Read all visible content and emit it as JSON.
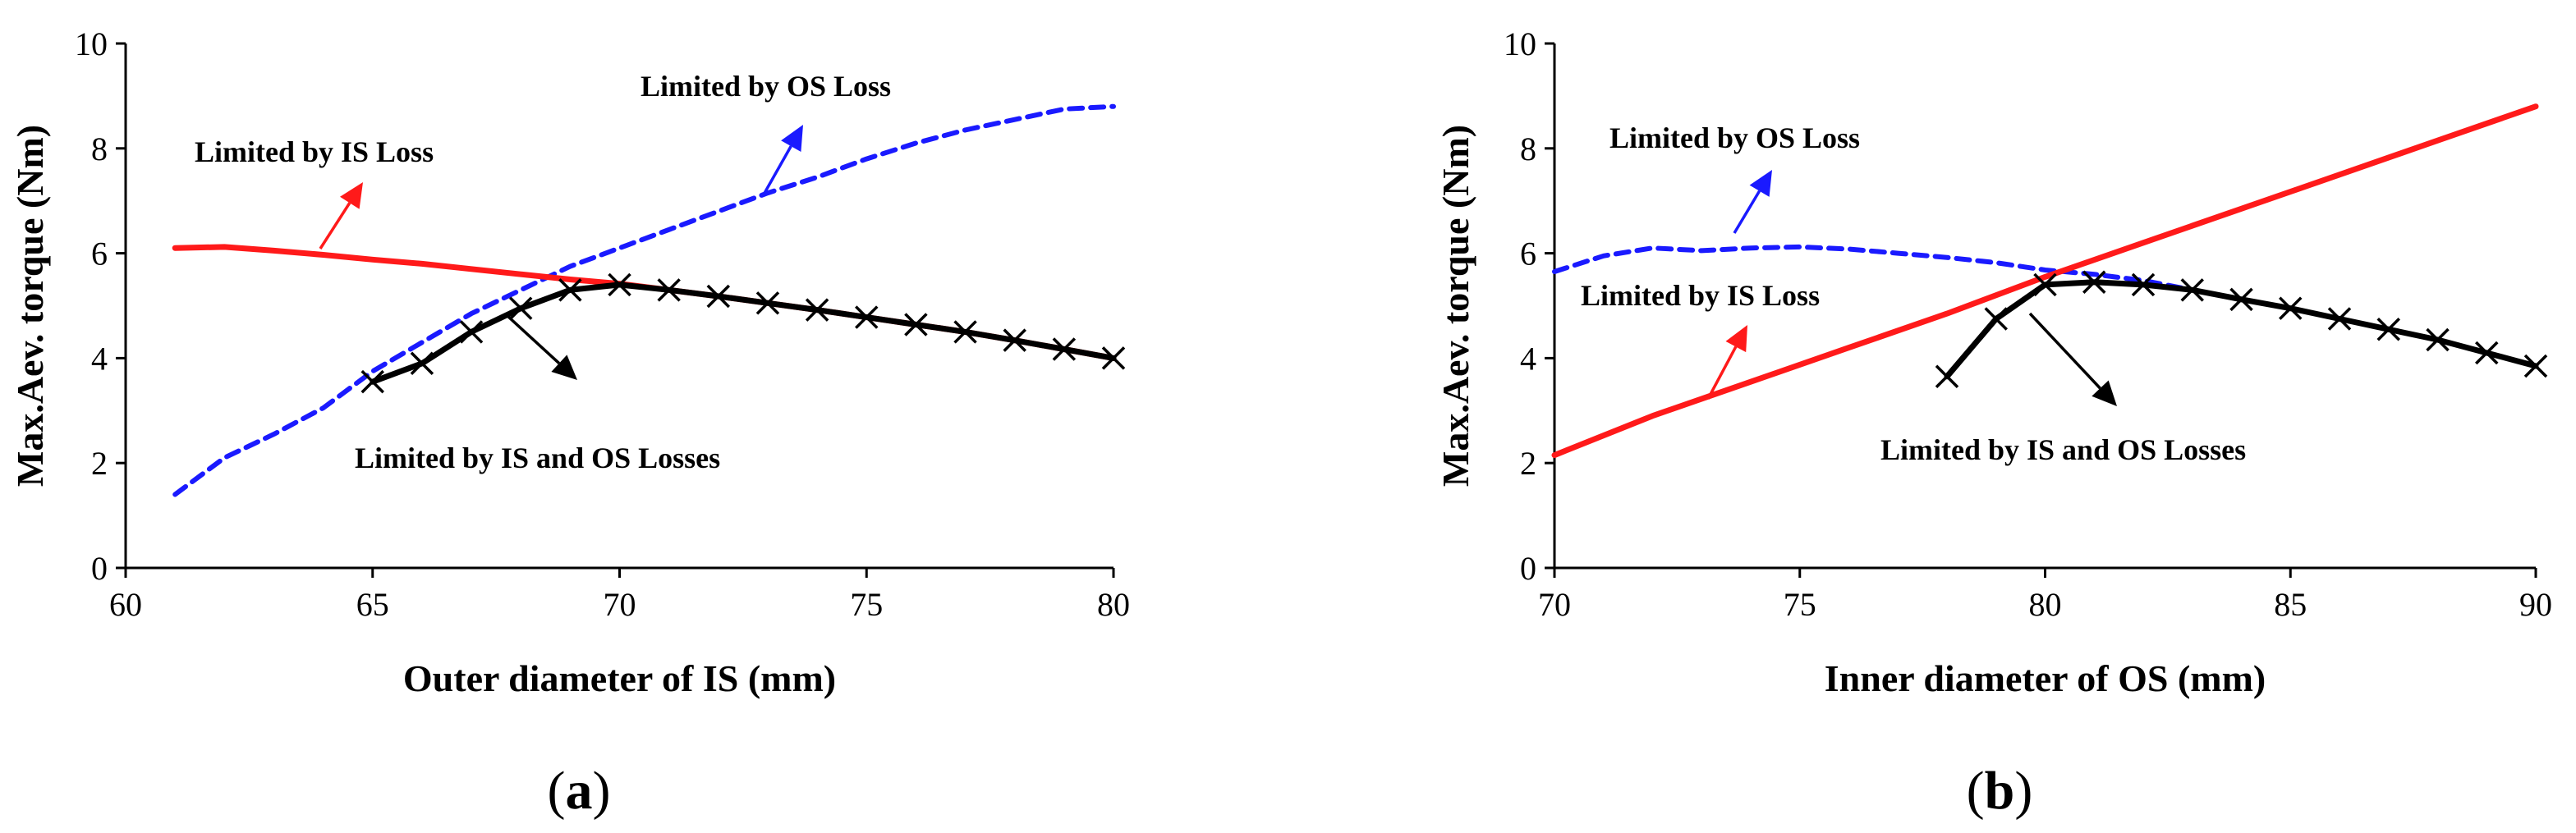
{
  "chart_data": [
    {
      "type": "line",
      "panel_label_letter": "a",
      "xlabel": "Outer diameter of IS (mm)",
      "ylabel": "Max.Aev. torque (Nm)",
      "xlim": [
        60,
        80
      ],
      "ylim": [
        0,
        10
      ],
      "xticks": [
        60,
        65,
        70,
        75,
        80
      ],
      "yticks": [
        0,
        2,
        4,
        6,
        8,
        10
      ],
      "grid": false,
      "series": [
        {
          "name": "Limited by OS Loss",
          "color": "#1a1aff",
          "style": "dashed",
          "x": [
            61,
            62,
            63,
            64,
            65,
            66,
            67,
            68,
            69,
            70,
            71,
            72,
            73,
            74,
            75,
            76,
            77,
            78,
            79,
            80
          ],
          "y": [
            1.4,
            2.1,
            2.55,
            3.05,
            3.75,
            4.3,
            4.85,
            5.3,
            5.75,
            6.1,
            6.45,
            6.8,
            7.15,
            7.45,
            7.8,
            8.1,
            8.35,
            8.55,
            8.75,
            8.8
          ]
        },
        {
          "name": "Limited by IS Loss",
          "color": "#ff1a1a",
          "style": "solid",
          "x": [
            61,
            62,
            63,
            64,
            65,
            66,
            67,
            68,
            69,
            70,
            71,
            72,
            73,
            74,
            75,
            76,
            77,
            78,
            79,
            80
          ],
          "y": [
            6.1,
            6.12,
            6.05,
            5.97,
            5.88,
            5.8,
            5.7,
            5.6,
            5.5,
            5.42,
            5.3,
            5.18,
            5.05,
            4.92,
            4.78,
            4.64,
            4.5,
            4.34,
            4.17,
            4.0
          ]
        },
        {
          "name": "Limited by IS and OS Losses",
          "color": "#000000",
          "style": "solid",
          "marker": "x",
          "x": [
            65,
            66,
            67,
            68,
            69,
            70,
            71,
            72,
            73,
            74,
            75,
            76,
            77,
            78,
            79,
            80
          ],
          "y": [
            3.55,
            3.9,
            4.5,
            4.95,
            5.3,
            5.4,
            5.3,
            5.18,
            5.05,
            4.92,
            4.78,
            4.64,
            4.5,
            4.34,
            4.17,
            4.0
          ]
        }
      ],
      "annotations": [
        {
          "text": "Limited by OS Loss",
          "anchor_series": 0,
          "at_x": 70.5
        },
        {
          "text": "Limited by IS Loss",
          "anchor_series": 1,
          "at_x": 63
        },
        {
          "text": "Limited by IS and OS Losses",
          "anchor_series": 2,
          "at_x": 67.8
        }
      ]
    },
    {
      "type": "line",
      "panel_label_letter": "b",
      "xlabel": "Inner diameter of OS (mm)",
      "ylabel": "Max.Aev. torque (Nm)",
      "xlim": [
        70,
        90
      ],
      "ylim": [
        0,
        10
      ],
      "xticks": [
        70,
        75,
        80,
        85,
        90
      ],
      "yticks": [
        0,
        2,
        4,
        6,
        8,
        10
      ],
      "grid": false,
      "series": [
        {
          "name": "Limited by OS Loss",
          "color": "#1a1aff",
          "style": "dashed",
          "x": [
            70,
            71,
            72,
            73,
            74,
            75,
            76,
            77,
            78,
            79,
            80,
            81,
            82,
            83,
            84,
            85,
            86,
            87,
            88,
            89,
            90
          ],
          "y": [
            5.65,
            5.95,
            6.1,
            6.05,
            6.1,
            6.12,
            6.08,
            6.0,
            5.92,
            5.82,
            5.68,
            5.6,
            5.48,
            5.3,
            5.12,
            4.95,
            4.75,
            4.55,
            4.35,
            4.1,
            3.85
          ]
        },
        {
          "name": "Limited by IS Loss",
          "color": "#ff1a1a",
          "style": "solid",
          "x": [
            70,
            72,
            74,
            76,
            78,
            80,
            82,
            84,
            86,
            88,
            90
          ],
          "y": [
            2.15,
            2.9,
            3.55,
            4.2,
            4.85,
            5.55,
            6.2,
            6.85,
            7.5,
            8.15,
            8.8
          ]
        },
        {
          "name": "Limited by IS and OS Losses",
          "color": "#000000",
          "style": "solid",
          "marker": "x",
          "x": [
            78,
            79,
            80,
            81,
            82,
            83,
            84,
            85,
            86,
            87,
            88,
            89,
            90
          ],
          "y": [
            3.65,
            4.75,
            5.4,
            5.45,
            5.4,
            5.3,
            5.12,
            4.95,
            4.75,
            4.55,
            4.35,
            4.1,
            3.85
          ]
        }
      ],
      "annotations": [
        {
          "text": "Limited by OS Loss",
          "anchor_series": 0,
          "at_x": 73.8
        },
        {
          "text": "Limited by IS Loss",
          "anchor_series": 1,
          "at_x": 73
        },
        {
          "text": "Limited by IS and OS Losses",
          "anchor_series": 2,
          "at_x": 79.7
        }
      ]
    }
  ]
}
